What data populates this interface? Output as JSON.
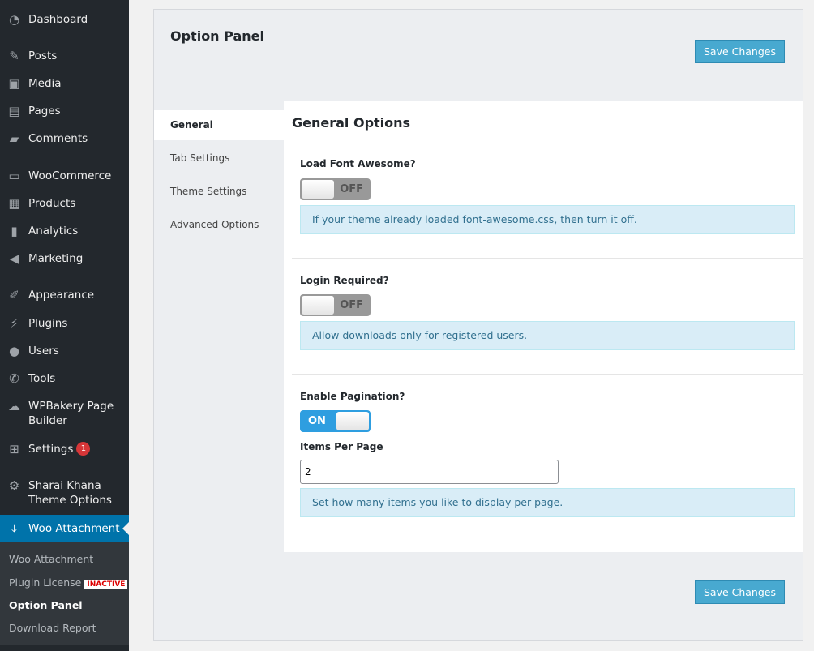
{
  "sidebar": {
    "items": [
      {
        "label": "Dashboard",
        "icon": "dashboard-icon",
        "glyph": "◔"
      },
      {
        "label": "Posts",
        "icon": "pin-icon",
        "glyph": "✎"
      },
      {
        "label": "Media",
        "icon": "media-icon",
        "glyph": "▣"
      },
      {
        "label": "Pages",
        "icon": "pages-icon",
        "glyph": "▤"
      },
      {
        "label": "Comments",
        "icon": "comment-icon",
        "glyph": "▰"
      },
      {
        "label": "WooCommerce",
        "icon": "woo-icon",
        "glyph": "▭"
      },
      {
        "label": "Products",
        "icon": "archive-icon",
        "glyph": "▦"
      },
      {
        "label": "Analytics",
        "icon": "chart-bar-icon",
        "glyph": "▮"
      },
      {
        "label": "Marketing",
        "icon": "megaphone-icon",
        "glyph": "◀"
      },
      {
        "label": "Appearance",
        "icon": "brush-icon",
        "glyph": "✐"
      },
      {
        "label": "Plugins",
        "icon": "plug-icon",
        "glyph": "⚡"
      },
      {
        "label": "Users",
        "icon": "user-icon",
        "glyph": "●"
      },
      {
        "label": "Tools",
        "icon": "wrench-icon",
        "glyph": "✆"
      },
      {
        "label": "WPBakery Page Builder",
        "icon": "cloud-icon",
        "glyph": "☁"
      },
      {
        "label": "Settings",
        "icon": "settings-icon",
        "glyph": "⊞",
        "badge": "1"
      },
      {
        "label": "Sharai Khana Theme Options",
        "icon": "gear-icon",
        "glyph": "⚙"
      },
      {
        "label": "Woo Attachment",
        "icon": "download-icon",
        "glyph": "⤓"
      }
    ],
    "submenu": [
      {
        "label": "Woo Attachment"
      },
      {
        "label": "Plugin License",
        "badge": "INACTIVE"
      },
      {
        "label": "Option Panel"
      },
      {
        "label": "Download Report"
      }
    ]
  },
  "panel": {
    "title": "Option Panel",
    "save_label": "Save Changes",
    "tabs": [
      "General",
      "Tab Settings",
      "Theme Settings",
      "Advanced Options"
    ],
    "section_title": "General Options",
    "options": [
      {
        "label": "Load Font Awesome?",
        "toggle": "OFF",
        "hint": "If your theme already loaded font-awesome.css, then turn it off."
      },
      {
        "label": "Login Required?",
        "toggle": "OFF",
        "hint": "Allow downloads only for registered users."
      },
      {
        "label": "Enable Pagination?",
        "toggle": "ON",
        "sub_label": "Items Per Page",
        "value": "2",
        "hint": "Set how many items you like to display per page."
      }
    ]
  },
  "colors": {
    "accent": "#0073aa",
    "button": "#48a9d0",
    "toggle_on": "#2e9ee0"
  }
}
